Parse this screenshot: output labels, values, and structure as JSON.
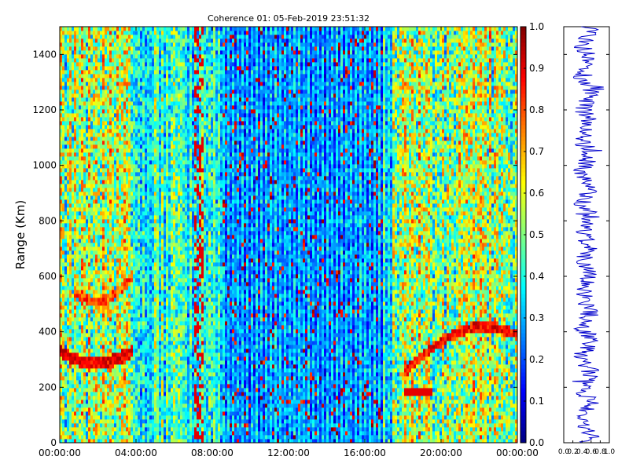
{
  "chart_data": [
    {
      "type": "heatmap",
      "title": "Coherence 01: 05-Feb-2019 23:51:32",
      "xlabel": "",
      "ylabel": "Range (Km)",
      "x_ticks": [
        "00:00:00",
        "04:00:00",
        "08:00:00",
        "12:00:00",
        "16:00:00",
        "20:00:00",
        "00:00:00"
      ],
      "y_ticks": [
        "0",
        "200",
        "400",
        "600",
        "800",
        "1000",
        "1200",
        "1400"
      ],
      "ylim": [
        0,
        1500
      ],
      "xlim_hours": [
        0,
        24
      ],
      "colorbar": {
        "colormap": "jet",
        "range": [
          0.0,
          1.0
        ],
        "ticks": [
          "0.0",
          "0.1",
          "0.2",
          "0.3",
          "0.4",
          "0.5",
          "0.6",
          "0.7",
          "0.8",
          "0.9",
          "1.0"
        ]
      },
      "features": [
        {
          "x_hours": [
            0,
            3.8
          ],
          "range_km": [
            280,
            370
          ],
          "value": 0.85
        },
        {
          "x_hours": [
            1.0,
            3.2
          ],
          "range_km": [
            500,
            700
          ],
          "value": 0.7
        },
        {
          "x_hours": [
            18.0,
            24
          ],
          "range_km": [
            180,
            430
          ],
          "value": 0.85
        },
        {
          "x_hours": [
            8.5,
            17.0
          ],
          "range_km": [
            0,
            1500
          ],
          "value": 0.15
        }
      ]
    },
    {
      "type": "line",
      "title": "",
      "xlabel": "",
      "ylabel": "",
      "xlim": [
        0.0,
        1.0
      ],
      "x_ticks": [
        "0.0",
        "0.2",
        "0.4",
        "0.6",
        "0.8",
        "1.0"
      ],
      "ylim": [
        0,
        1500
      ],
      "color": "#0000cc",
      "mean_value": 0.5
    }
  ]
}
